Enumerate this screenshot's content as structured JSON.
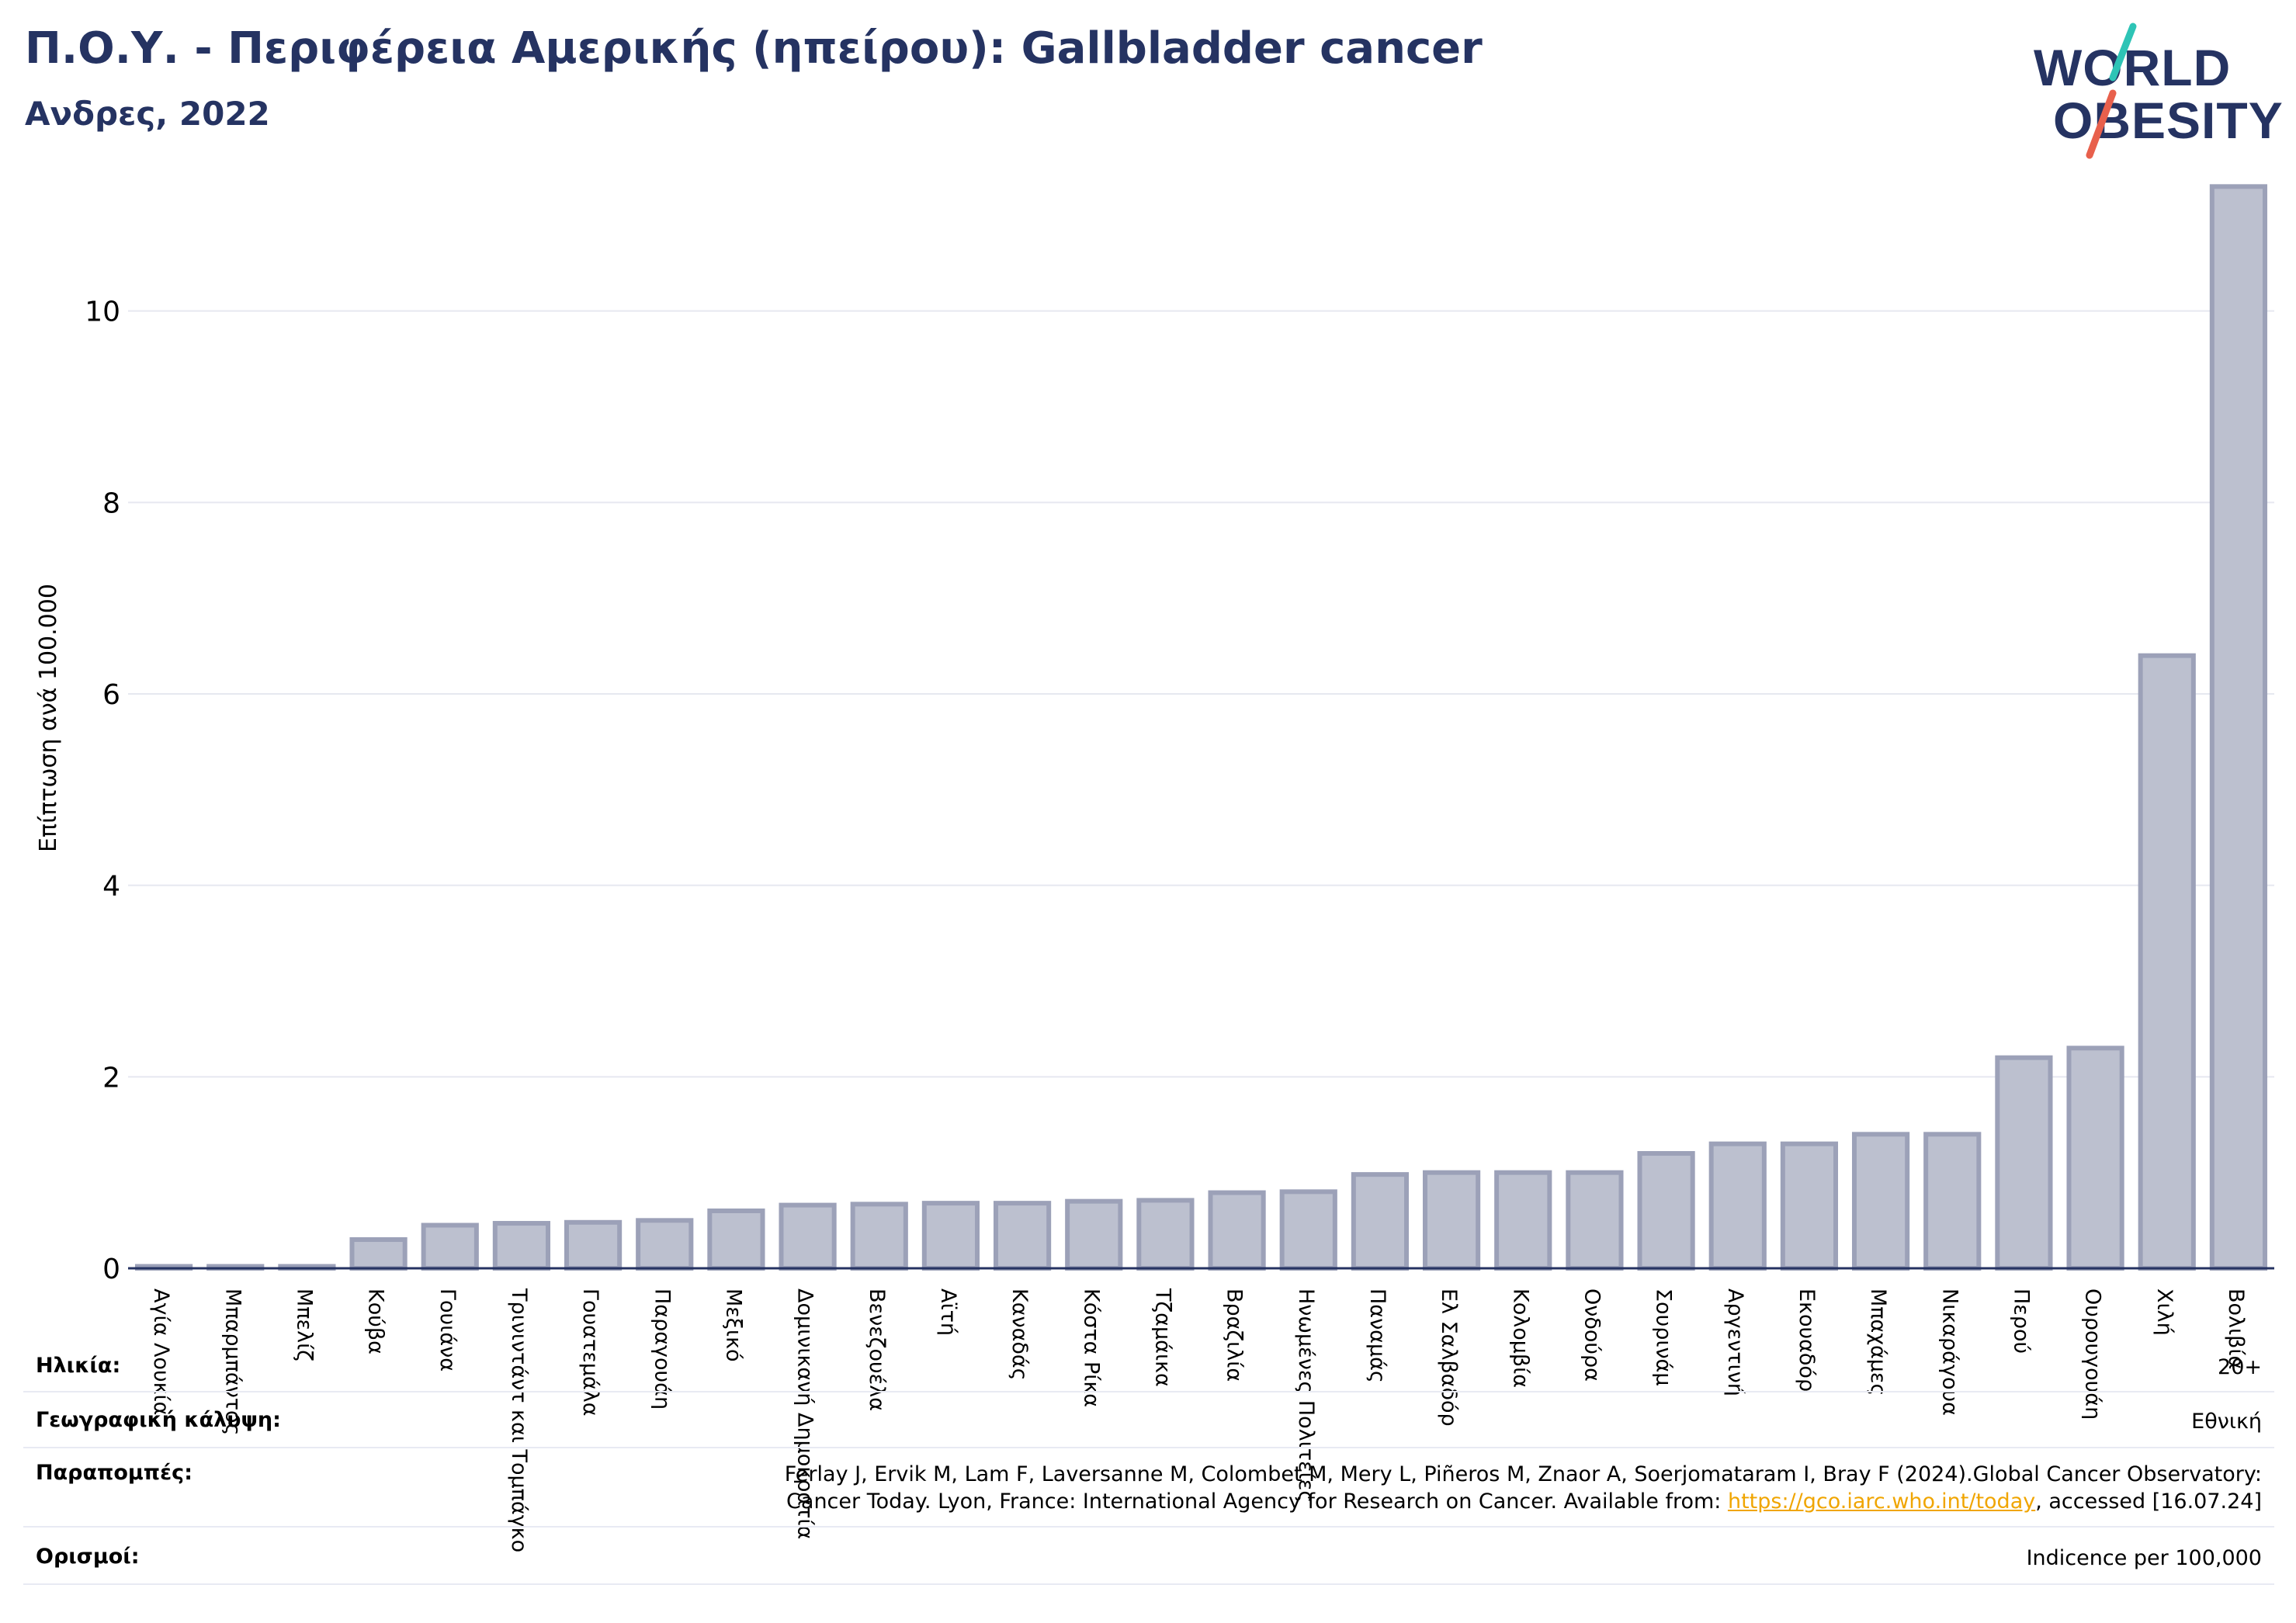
{
  "header": {
    "title": "Π.Ο.Υ. - Περιφέρεια Αμερικής (ηπείρου): Gallbladder cancer",
    "subtitle": "Ανδρες, 2022"
  },
  "logo": {
    "line1": "WORLD",
    "line2": "OBESITY",
    "accent_teal": "#2ec4b6",
    "accent_orange": "#e8604c",
    "text_color": "#253362"
  },
  "chart_data": {
    "type": "bar",
    "ylabel": "Επίπτωση ανά 100.000",
    "ylim": [
      0,
      11.4
    ],
    "yticks": [
      0,
      2,
      4,
      6,
      8,
      10
    ],
    "grid": true,
    "bar_color": "#bcc0cf",
    "bar_edge": "#9ca1b8",
    "categories": [
      "Αγία Λουκία",
      "Μπαρμπάντος",
      "Μπελίζ",
      "Κούβα",
      "Γουιάνα",
      "Τρινιντάντ και Τομπάγκο",
      "Γουατεμάλα",
      "Παραγουάη",
      "Μεξικό",
      "Δομινικανή Δημοκρατία",
      "Βενεζουέλα",
      "Αϊτή",
      "Καναδάς",
      "Κόστα Ρίκα",
      "Τζαμάικα",
      "Βραζιλία",
      "Ηνωμένες Πολιτείες",
      "Παναμάς",
      "Ελ Σαλβαδόρ",
      "Κολομβία",
      "Ονδούρα",
      "Σουρινάμ",
      "Αργεντινή",
      "Εκουαδόρ",
      "Μπαχάμες",
      "Νικαράγουα",
      "Περού",
      "Ουρουγουάη",
      "Χιλή",
      "Βολιβία"
    ],
    "values": [
      0.02,
      0.02,
      0.02,
      0.3,
      0.45,
      0.47,
      0.48,
      0.5,
      0.6,
      0.66,
      0.67,
      0.68,
      0.68,
      0.7,
      0.71,
      0.79,
      0.8,
      0.98,
      1.0,
      1.0,
      1.0,
      1.2,
      1.3,
      1.3,
      1.4,
      1.4,
      2.2,
      2.3,
      6.4,
      11.3
    ]
  },
  "info": {
    "age_label": "Ηλικία:",
    "age_value": "20+",
    "coverage_label": "Γεωγραφική κάλυψη:",
    "coverage_value": "Εθνική",
    "refs_label": "Παραπομπές:",
    "refs_line1": "Ferlay J, Ervik M, Lam F, Laversanne M, Colombet M, Mery L, Piñeros M, Znaor A, Soerjomataram I, Bray F (2024).Global Cancer Observatory:",
    "refs_line2_pre": "Cancer Today. Lyon, France: International Agency for Research on Cancer. Available from: ",
    "refs_link": "https://gco.iarc.who.int/today",
    "refs_line2_post": ", accessed [16.07.24]",
    "defs_label": "Ορισμοί:",
    "defs_value": "Indicence per 100,000"
  }
}
